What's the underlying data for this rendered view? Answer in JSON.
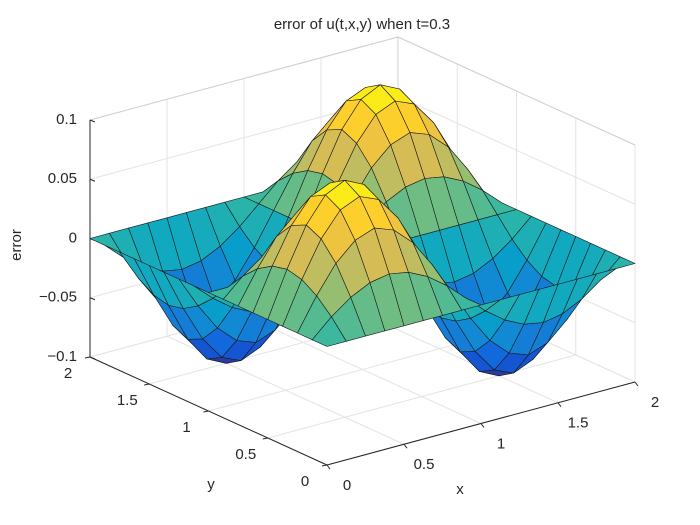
{
  "chart_data": {
    "type": "surface",
    "title": "error of u(t,x,y) when t=0.3",
    "x_label": "x",
    "y_label": "y",
    "z_label": "error",
    "x": [
      0,
      0.125,
      0.25,
      0.375,
      0.5,
      0.625,
      0.75,
      0.875,
      1,
      1.125,
      1.25,
      1.375,
      1.5,
      1.625,
      1.75,
      1.875,
      2
    ],
    "y": [
      0,
      0.125,
      0.25,
      0.375,
      0.5,
      0.625,
      0.75,
      0.875,
      1,
      1.125,
      1.25,
      1.375,
      1.5,
      1.625,
      1.75,
      1.875,
      2
    ],
    "z": [
      [
        0,
        0,
        0,
        0,
        0,
        0,
        0,
        0,
        0,
        0,
        0,
        0,
        0,
        0,
        0,
        0,
        0
      ],
      [
        0,
        0.015,
        0.027,
        0.035,
        0.038,
        0.035,
        0.027,
        0.015,
        0,
        -0.015,
        -0.027,
        -0.035,
        -0.038,
        -0.035,
        -0.027,
        -0.015,
        0
      ],
      [
        0,
        0.027,
        0.05,
        0.065,
        0.071,
        0.065,
        0.05,
        0.027,
        0,
        -0.027,
        -0.05,
        -0.065,
        -0.071,
        -0.065,
        -0.05,
        -0.027,
        0
      ],
      [
        0,
        0.035,
        0.065,
        0.085,
        0.092,
        0.085,
        0.065,
        0.035,
        0,
        -0.035,
        -0.065,
        -0.085,
        -0.092,
        -0.085,
        -0.065,
        -0.035,
        0
      ],
      [
        0,
        0.038,
        0.071,
        0.092,
        0.1,
        0.092,
        0.071,
        0.038,
        0,
        -0.038,
        -0.071,
        -0.092,
        -0.1,
        -0.092,
        -0.071,
        -0.038,
        0
      ],
      [
        0,
        0.035,
        0.065,
        0.085,
        0.092,
        0.085,
        0.065,
        0.035,
        0,
        -0.035,
        -0.065,
        -0.085,
        -0.092,
        -0.085,
        -0.065,
        -0.035,
        0
      ],
      [
        0,
        0.027,
        0.05,
        0.065,
        0.071,
        0.065,
        0.05,
        0.027,
        0,
        -0.027,
        -0.05,
        -0.065,
        -0.071,
        -0.065,
        -0.05,
        -0.027,
        0
      ],
      [
        0,
        0.015,
        0.027,
        0.035,
        0.038,
        0.035,
        0.027,
        0.015,
        0,
        -0.015,
        -0.027,
        -0.035,
        -0.038,
        -0.035,
        -0.027,
        -0.015,
        0
      ],
      [
        0,
        0,
        0,
        0,
        0,
        0,
        0,
        0,
        0,
        0,
        0,
        0,
        0,
        0,
        0,
        0,
        0
      ],
      [
        0,
        -0.015,
        -0.027,
        -0.035,
        -0.038,
        -0.035,
        -0.027,
        -0.015,
        0,
        0.015,
        0.027,
        0.035,
        0.038,
        0.035,
        0.027,
        0.015,
        0
      ],
      [
        0,
        -0.027,
        -0.05,
        -0.065,
        -0.071,
        -0.065,
        -0.05,
        -0.027,
        0,
        0.027,
        0.05,
        0.065,
        0.071,
        0.065,
        0.05,
        0.027,
        0
      ],
      [
        0,
        -0.035,
        -0.065,
        -0.085,
        -0.092,
        -0.085,
        -0.065,
        -0.035,
        0,
        0.035,
        0.065,
        0.085,
        0.092,
        0.085,
        0.065,
        0.035,
        0
      ],
      [
        0,
        -0.038,
        -0.071,
        -0.092,
        -0.1,
        -0.092,
        -0.071,
        -0.038,
        0,
        0.038,
        0.071,
        0.092,
        0.1,
        0.092,
        0.071,
        0.038,
        0
      ],
      [
        0,
        -0.035,
        -0.065,
        -0.085,
        -0.092,
        -0.085,
        -0.065,
        -0.035,
        0,
        0.035,
        0.065,
        0.085,
        0.092,
        0.085,
        0.065,
        0.035,
        0
      ],
      [
        0,
        -0.027,
        -0.05,
        -0.065,
        -0.071,
        -0.065,
        -0.05,
        -0.027,
        0,
        0.027,
        0.05,
        0.065,
        0.071,
        0.065,
        0.05,
        0.027,
        0
      ],
      [
        0,
        -0.015,
        -0.027,
        -0.035,
        -0.038,
        -0.035,
        -0.027,
        -0.015,
        0,
        0.015,
        0.027,
        0.035,
        0.038,
        0.035,
        0.027,
        0.015,
        0
      ],
      [
        0,
        0,
        0,
        0,
        0,
        0,
        0,
        0,
        0,
        0,
        0,
        0,
        0,
        0,
        0,
        0,
        0
      ]
    ],
    "xlim": [
      0,
      2
    ],
    "ylim": [
      0,
      2
    ],
    "zlim": [
      -0.1,
      0.1
    ],
    "xticks": [
      0,
      0.5,
      1,
      1.5,
      2
    ],
    "yticks": [
      0,
      0.5,
      1,
      1.5,
      2
    ],
    "zticks": [
      {
        "value": -0.1,
        "label": "−0.1"
      },
      {
        "value": -0.05,
        "label": "−0.05"
      },
      0,
      0.05,
      0.1
    ],
    "grid": true,
    "colormap": [
      "#352a87",
      "#0f5cdd",
      "#1481d6",
      "#06a4ca",
      "#2eb7a4",
      "#87bf77",
      "#d1bb59",
      "#fec832",
      "#f9fb0e"
    ]
  }
}
